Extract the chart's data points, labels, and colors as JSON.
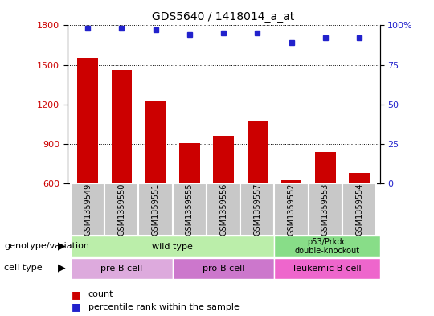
{
  "title": "GDS5640 / 1418014_a_at",
  "samples": [
    "GSM1359549",
    "GSM1359550",
    "GSM1359551",
    "GSM1359555",
    "GSM1359556",
    "GSM1359557",
    "GSM1359552",
    "GSM1359553",
    "GSM1359554"
  ],
  "counts": [
    1555,
    1460,
    1230,
    905,
    960,
    1075,
    625,
    835,
    680
  ],
  "percentiles": [
    98,
    98,
    97,
    94,
    95,
    95,
    89,
    92,
    92
  ],
  "ylim_left": [
    600,
    1800
  ],
  "ylim_right": [
    0,
    100
  ],
  "yticks_left": [
    600,
    900,
    1200,
    1500,
    1800
  ],
  "yticks_right": [
    0,
    25,
    50,
    75,
    100
  ],
  "bar_color": "#cc0000",
  "dot_color": "#2222cc",
  "bg_color": "#ffffff",
  "plot_bg_color": "#ffffff",
  "gsm_bg_color": "#c8c8c8",
  "genotype_wt_color": "#bbeeaa",
  "genotype_dk_color": "#88dd88",
  "cell_pre_color": "#ddaadd",
  "cell_pro_color": "#cc77cc",
  "cell_leu_color": "#ee66cc",
  "legend_count_label": "count",
  "legend_percentile_label": "percentile rank within the sample",
  "left_label_color": "#cc0000",
  "right_label_color": "#2222cc",
  "genotype_label": "genotype/variation",
  "cell_type_label": "cell type"
}
